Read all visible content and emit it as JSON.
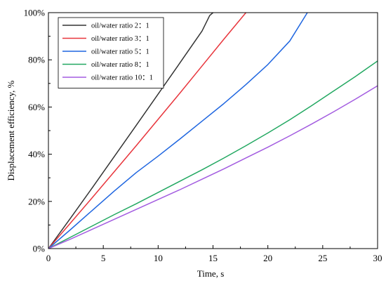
{
  "chart_data": {
    "type": "line",
    "title": "",
    "xlabel": "Time, s",
    "ylabel": "Displacement efficiency, %",
    "xlim": [
      0,
      30
    ],
    "ylim": [
      0,
      100
    ],
    "x_ticks": [
      0,
      5,
      10,
      15,
      20,
      25,
      30
    ],
    "x_tick_labels": [
      "0",
      "5",
      "10",
      "15",
      "20",
      "25",
      "30"
    ],
    "y_ticks": [
      0,
      20,
      40,
      60,
      80,
      100
    ],
    "y_tick_labels": [
      "0%",
      "20%",
      "40%",
      "60%",
      "80%",
      "100%"
    ],
    "grid": false,
    "legend_position": "top-left",
    "series": [
      {
        "name": "oil/water ratio 2：1",
        "color": "#333333",
        "points": [
          [
            0,
            0
          ],
          [
            2,
            12.8
          ],
          [
            4,
            25.8
          ],
          [
            6,
            39
          ],
          [
            8,
            52.2
          ],
          [
            10,
            65.5
          ],
          [
            12,
            78.8
          ],
          [
            14,
            92.2
          ],
          [
            14.7,
            98.8
          ],
          [
            15,
            100
          ]
        ]
      },
      {
        "name": "oil/water ratio 3：1",
        "color": "#e8353c",
        "points": [
          [
            0,
            0
          ],
          [
            2,
            10.8
          ],
          [
            4,
            21.6
          ],
          [
            6,
            32.6
          ],
          [
            8,
            43.6
          ],
          [
            10,
            54.8
          ],
          [
            12,
            66
          ],
          [
            14,
            77.4
          ],
          [
            16,
            88.8
          ],
          [
            18,
            100
          ]
        ]
      },
      {
        "name": "oil/water ratio 5：1",
        "color": "#1f66e0",
        "points": [
          [
            0,
            0
          ],
          [
            2,
            8
          ],
          [
            4,
            16.2
          ],
          [
            6,
            24.4
          ],
          [
            8,
            32.2
          ],
          [
            10,
            39.2
          ],
          [
            12,
            46.5
          ],
          [
            14,
            54
          ],
          [
            16,
            61.5
          ],
          [
            18,
            69.5
          ],
          [
            20,
            78
          ],
          [
            22,
            88
          ],
          [
            23.6,
            100
          ]
        ]
      },
      {
        "name": "oil/water ratio 8：1",
        "color": "#22a861",
        "points": [
          [
            0,
            0
          ],
          [
            2,
            4.8
          ],
          [
            4,
            9.6
          ],
          [
            6,
            14.4
          ],
          [
            8,
            19
          ],
          [
            10,
            23.8
          ],
          [
            12,
            28.6
          ],
          [
            14,
            33.4
          ],
          [
            16,
            38.4
          ],
          [
            18,
            43.6
          ],
          [
            20,
            49
          ],
          [
            22,
            54.6
          ],
          [
            24,
            60.6
          ],
          [
            26,
            66.8
          ],
          [
            28,
            73
          ],
          [
            30,
            79.5
          ]
        ]
      },
      {
        "name": "oil/water ratio 10：1",
        "color": "#a35ce0",
        "points": [
          [
            0,
            0
          ],
          [
            2,
            4
          ],
          [
            4,
            8.2
          ],
          [
            6,
            12.4
          ],
          [
            8,
            16.6
          ],
          [
            10,
            20.8
          ],
          [
            12,
            25
          ],
          [
            14,
            29.4
          ],
          [
            16,
            33.8
          ],
          [
            18,
            38.4
          ],
          [
            20,
            43
          ],
          [
            22,
            47.8
          ],
          [
            24,
            52.8
          ],
          [
            26,
            58
          ],
          [
            28,
            63.4
          ],
          [
            30,
            69
          ]
        ]
      }
    ]
  }
}
